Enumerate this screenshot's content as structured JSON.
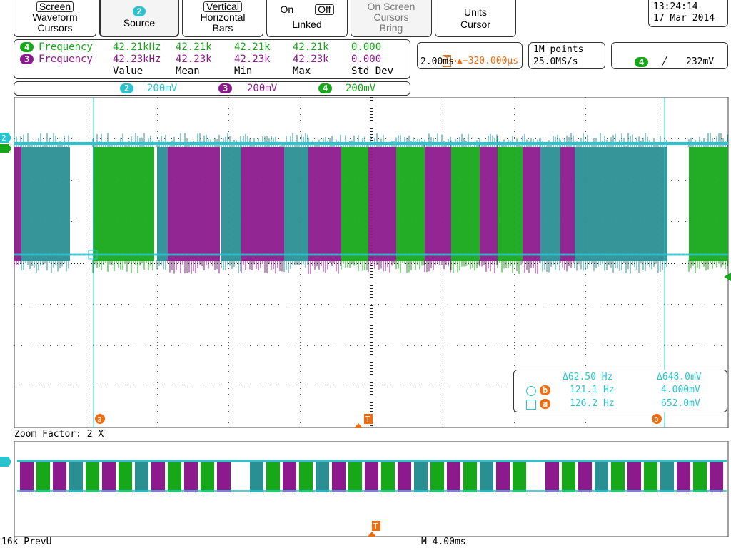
{
  "menu": {
    "cursors": {
      "top": "Screen",
      "mid": "Waveform",
      "bot": "Cursors"
    },
    "source": {
      "ch": "2",
      "label": "Source"
    },
    "bars": {
      "top": "Vertical",
      "mid": "Horizontal",
      "bot": "Bars"
    },
    "linked": {
      "on": "On",
      "off": "Off",
      "label": "Linked"
    },
    "bring": {
      "l1": "On Screen",
      "l2": "Cursors",
      "l3": "Bring"
    },
    "units": {
      "l1": "Units",
      "l2": "Cursor"
    }
  },
  "datetime": {
    "time": "13:24:14",
    "date": "17 Mar 2014"
  },
  "measurements": {
    "rows": [
      {
        "ch": "4",
        "name": "Frequency",
        "value": "42.21kHz",
        "mean": "42.21k",
        "min": "42.21k",
        "max": "42.21k",
        "std": "0.000",
        "color": "#17a81a"
      },
      {
        "ch": "3",
        "name": "Frequency",
        "value": "42.23kHz",
        "mean": "42.23k",
        "min": "42.23k",
        "max": "42.23k",
        "std": "0.000",
        "color": "#8c1a8c"
      }
    ],
    "headers": {
      "value": "Value",
      "mean": "Mean",
      "min": "Min",
      "max": "Max",
      "std": "Std Dev"
    }
  },
  "channels": [
    {
      "ch": "2",
      "scale": "200mV",
      "color": "#29c4cf"
    },
    {
      "ch": "3",
      "scale": "200mV",
      "color": "#8c1a8c"
    },
    {
      "ch": "4",
      "scale": "200mV",
      "color": "#17a81a"
    }
  ],
  "trigger_pos": {
    "marker": "T",
    "offset": "→▲−320.000μs",
    "timebase": "2.00ms"
  },
  "acq": {
    "points": "1M points",
    "rate": "25.0MS/s"
  },
  "trigger": {
    "ch": "4",
    "slope": "╱",
    "level": "232mV"
  },
  "cursor_readout": {
    "delta_f": "Δ62.50 Hz",
    "delta_v": "Δ648.0mV",
    "b_f": "121.1 Hz",
    "b_v": "4.000mV",
    "a_f": "126.2 Hz",
    "a_v": "652.0mV",
    "a": "a",
    "b": "b"
  },
  "zoom": {
    "label": "Zoom Factor: 2 X"
  },
  "bottom": {
    "left": "16k PrevU",
    "mid": "M 4.00ms"
  },
  "colors": {
    "ch2": "#29c4cf",
    "ch3": "#8c1a8c",
    "ch4": "#17a81a",
    "cursor": "#29c4cf",
    "orange": "#ef6c11",
    "grid": "#555555"
  }
}
